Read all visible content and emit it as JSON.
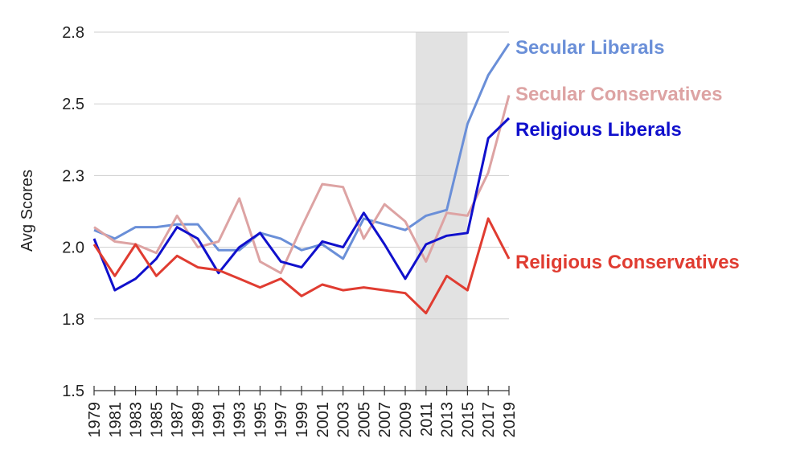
{
  "chart_data": {
    "type": "line",
    "title": "",
    "xlabel": "",
    "ylabel": "Avg Scores",
    "ylim": [
      1.5,
      2.75
    ],
    "yticks": [
      1.5,
      1.8,
      2.0,
      2.3,
      2.5,
      2.8
    ],
    "ytick_values": [
      1.5,
      1.75,
      2.0,
      2.25,
      2.5,
      2.75
    ],
    "x": [
      1979,
      1981,
      1983,
      1985,
      1987,
      1989,
      1991,
      1993,
      1995,
      1997,
      1999,
      2001,
      2003,
      2005,
      2007,
      2009,
      2011,
      2013,
      2015,
      2017,
      2019
    ],
    "xtick_labels": [
      "1979",
      "1981",
      "1983",
      "1985",
      "1987",
      "1989",
      "1991",
      "1993",
      "1995",
      "1997",
      "1999",
      "2001",
      "2003",
      "2005",
      "2007",
      "2009",
      "2011",
      "2013",
      "2015",
      "2017",
      "2019"
    ],
    "grid": true,
    "legend": "inline-right",
    "shaded_region": [
      2010,
      2015
    ],
    "series": [
      {
        "name": "Secular Liberals",
        "color": "#6a8fd8",
        "values": [
          2.06,
          2.03,
          2.07,
          2.07,
          2.08,
          2.08,
          1.99,
          1.99,
          2.05,
          2.03,
          1.99,
          2.01,
          1.96,
          2.1,
          2.08,
          2.06,
          2.11,
          2.13,
          2.43,
          2.6,
          2.71
        ]
      },
      {
        "name": "Secular Conservatives",
        "color": "#dda3a3",
        "values": [
          2.07,
          2.02,
          2.01,
          1.98,
          2.11,
          2.0,
          2.02,
          2.17,
          1.95,
          1.91,
          2.07,
          2.22,
          2.21,
          2.03,
          2.15,
          2.09,
          1.95,
          2.12,
          2.11,
          2.26,
          2.53
        ]
      },
      {
        "name": "Religious Liberals",
        "color": "#1010cc",
        "values": [
          2.03,
          1.85,
          1.89,
          1.96,
          2.07,
          2.03,
          1.91,
          2.0,
          2.05,
          1.95,
          1.93,
          2.02,
          2.0,
          2.12,
          2.01,
          1.89,
          2.01,
          2.04,
          2.05,
          2.38,
          2.45
        ]
      },
      {
        "name": "Religious Conservatives",
        "color": "#e03c31",
        "values": [
          2.01,
          1.9,
          2.01,
          1.9,
          1.97,
          1.93,
          1.92,
          1.89,
          1.86,
          1.89,
          1.83,
          1.87,
          1.85,
          1.86,
          1.85,
          1.84,
          1.77,
          1.9,
          1.85,
          2.1,
          1.96
        ]
      }
    ]
  }
}
